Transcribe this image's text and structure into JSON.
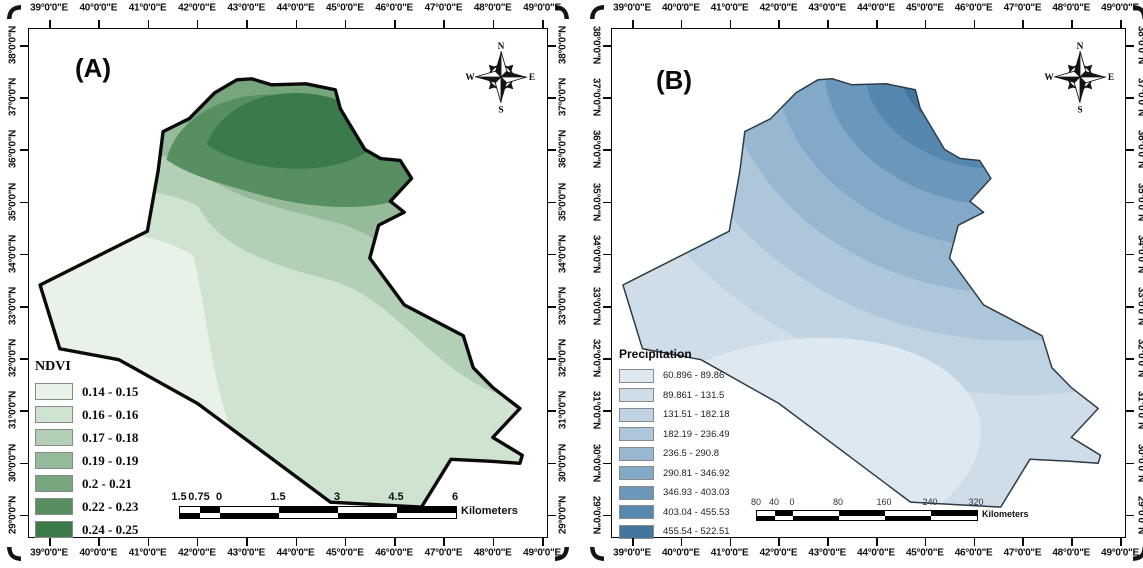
{
  "axes": {
    "longitude_labels": [
      "39°0'0\"E",
      "40°0'0\"E",
      "41°0'0\"E",
      "42°0'0\"E",
      "43°0'0\"E",
      "44°0'0\"E",
      "45°0'0\"E",
      "46°0'0\"E",
      "47°0'0\"E",
      "48°0'0\"E",
      "49°0'0\"E"
    ],
    "latitude_labels": [
      "38°0'0\"N",
      "37°0'0\"N",
      "36°0'0\"N",
      "35°0'0\"N",
      "34°0'0\"N",
      "33°0'0\"N",
      "32°0'0\"N",
      "31°0'0\"N",
      "30°0'0\"N",
      "29°0'0\"N"
    ]
  },
  "panels": [
    {
      "id": "A",
      "label": "(A)",
      "legend": {
        "title": "NDVI",
        "classes": [
          {
            "range": "0.14 - 0.15",
            "color": "#e8f2e8"
          },
          {
            "range": "0.16 - 0.16",
            "color": "#cfe3d1"
          },
          {
            "range": "0.17 - 0.18",
            "color": "#b3d0b7"
          },
          {
            "range": "0.19 - 0.19",
            "color": "#95bb9b"
          },
          {
            "range": "0.2 - 0.21",
            "color": "#77a67e"
          },
          {
            "range": "0.22 - 0.23",
            "color": "#578f61"
          },
          {
            "range": "0.24 - 0.25",
            "color": "#3b7a4a"
          }
        ]
      },
      "scalebar": {
        "labels": [
          "1.5",
          "0.75",
          "0",
          "1.5",
          "3",
          "4.5",
          "6"
        ],
        "unit": "Kilometers"
      },
      "compass": [
        "N",
        "E",
        "S",
        "W"
      ]
    },
    {
      "id": "B",
      "label": "(B)",
      "legend": {
        "title": "Precipitation",
        "classes": [
          {
            "range": "60.896 - 89.86",
            "color": "#dde8f0"
          },
          {
            "range": "89.861 - 131.5",
            "color": "#cfdde9"
          },
          {
            "range": "131.51 - 182.18",
            "color": "#c0d3e2"
          },
          {
            "range": "182.19 - 236.49",
            "color": "#adc6da"
          },
          {
            "range": "236.5 - 290.8",
            "color": "#98b8d1"
          },
          {
            "range": "290.81 - 346.92",
            "color": "#82a9c7"
          },
          {
            "range": "346.93 - 403.03",
            "color": "#6b97bb"
          },
          {
            "range": "403.04 - 455.53",
            "color": "#5687af"
          },
          {
            "range": "455.54 - 522.51",
            "color": "#44759f"
          }
        ]
      },
      "scalebar": {
        "labels": [
          "80",
          "40",
          "0",
          "80",
          "160",
          "240",
          "320"
        ],
        "unit": "Kilometers"
      },
      "compass": [
        "N",
        "E",
        "S",
        "W"
      ]
    }
  ]
}
